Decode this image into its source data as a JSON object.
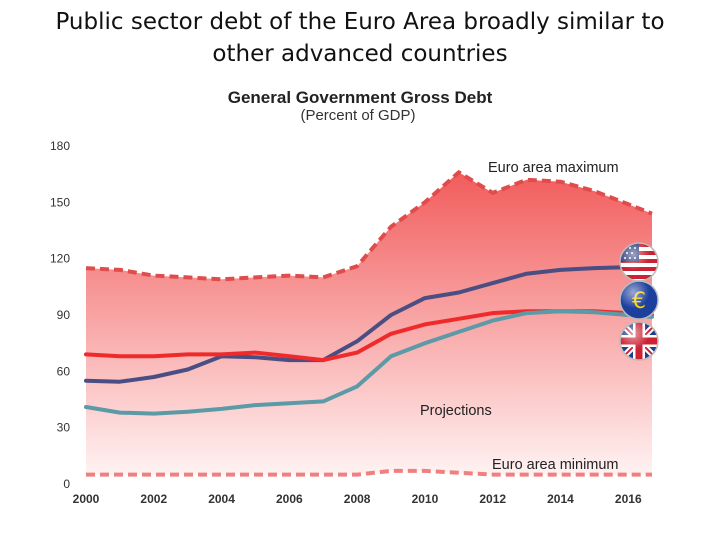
{
  "slide": {
    "title": "Public sector debt of the Euro Area broadly similar to other advanced countries"
  },
  "chart_data": {
    "type": "line",
    "title": "General Government Gross Debt",
    "subtitle": "(Percent of GDP)",
    "xlabel": "",
    "ylabel": "",
    "x": [
      2000,
      2001,
      2002,
      2003,
      2004,
      2005,
      2006,
      2007,
      2008,
      2009,
      2010,
      2011,
      2012,
      2013,
      2014,
      2015,
      2016,
      2016.7
    ],
    "xticks": [
      "2000",
      "2002",
      "2004",
      "2006",
      "2008",
      "2010",
      "2012",
      "2014",
      "2016"
    ],
    "yticks": [
      "0",
      "30",
      "60",
      "90",
      "120",
      "150",
      "180"
    ],
    "ylim": [
      0,
      180
    ],
    "xlim": [
      2000,
      2016.7
    ],
    "grid": false,
    "band": {
      "max_label": "Euro area maximum",
      "min_label": "Euro area minimum",
      "max_values": [
        115,
        114,
        111,
        110,
        109,
        110,
        111,
        110,
        116,
        137,
        150,
        166,
        155,
        162,
        161,
        156,
        149,
        144
      ],
      "min_values": [
        5,
        5,
        5,
        5,
        5,
        5,
        5,
        5,
        5,
        7,
        7,
        6,
        5,
        5,
        5,
        5,
        5,
        5
      ],
      "fill_top": "#f25c5c",
      "fill_bottom": "#fff2f2",
      "edge_color": "#e04c4c",
      "min_edge_color": "#f08080"
    },
    "projections_label": "Projections",
    "series": [
      {
        "values": [
          55,
          54.5,
          57,
          61,
          68,
          67.5,
          66,
          66,
          76,
          90,
          99,
          102,
          107,
          112,
          114,
          115,
          115.5,
          115.5
        ],
        "color": "#4a4e82"
      },
      {
        "values": [
          69,
          68,
          68,
          69,
          69,
          70,
          68,
          66,
          70,
          80,
          85,
          88,
          91,
          92,
          92,
          92,
          91,
          90
        ],
        "color": "#ee2a2a"
      },
      {
        "values": [
          41,
          38,
          37.5,
          38.5,
          40,
          42,
          43,
          44,
          52,
          68,
          75,
          81,
          87,
          91,
          92,
          91.5,
          90,
          89
        ],
        "color": "#5b9aa6"
      }
    ],
    "flags": [
      {
        "icon": "us-flag-icon",
        "series_index": 0
      },
      {
        "icon": "euro-flag-icon",
        "series_index": 1
      },
      {
        "icon": "uk-flag-icon",
        "series_index": 2
      }
    ]
  }
}
